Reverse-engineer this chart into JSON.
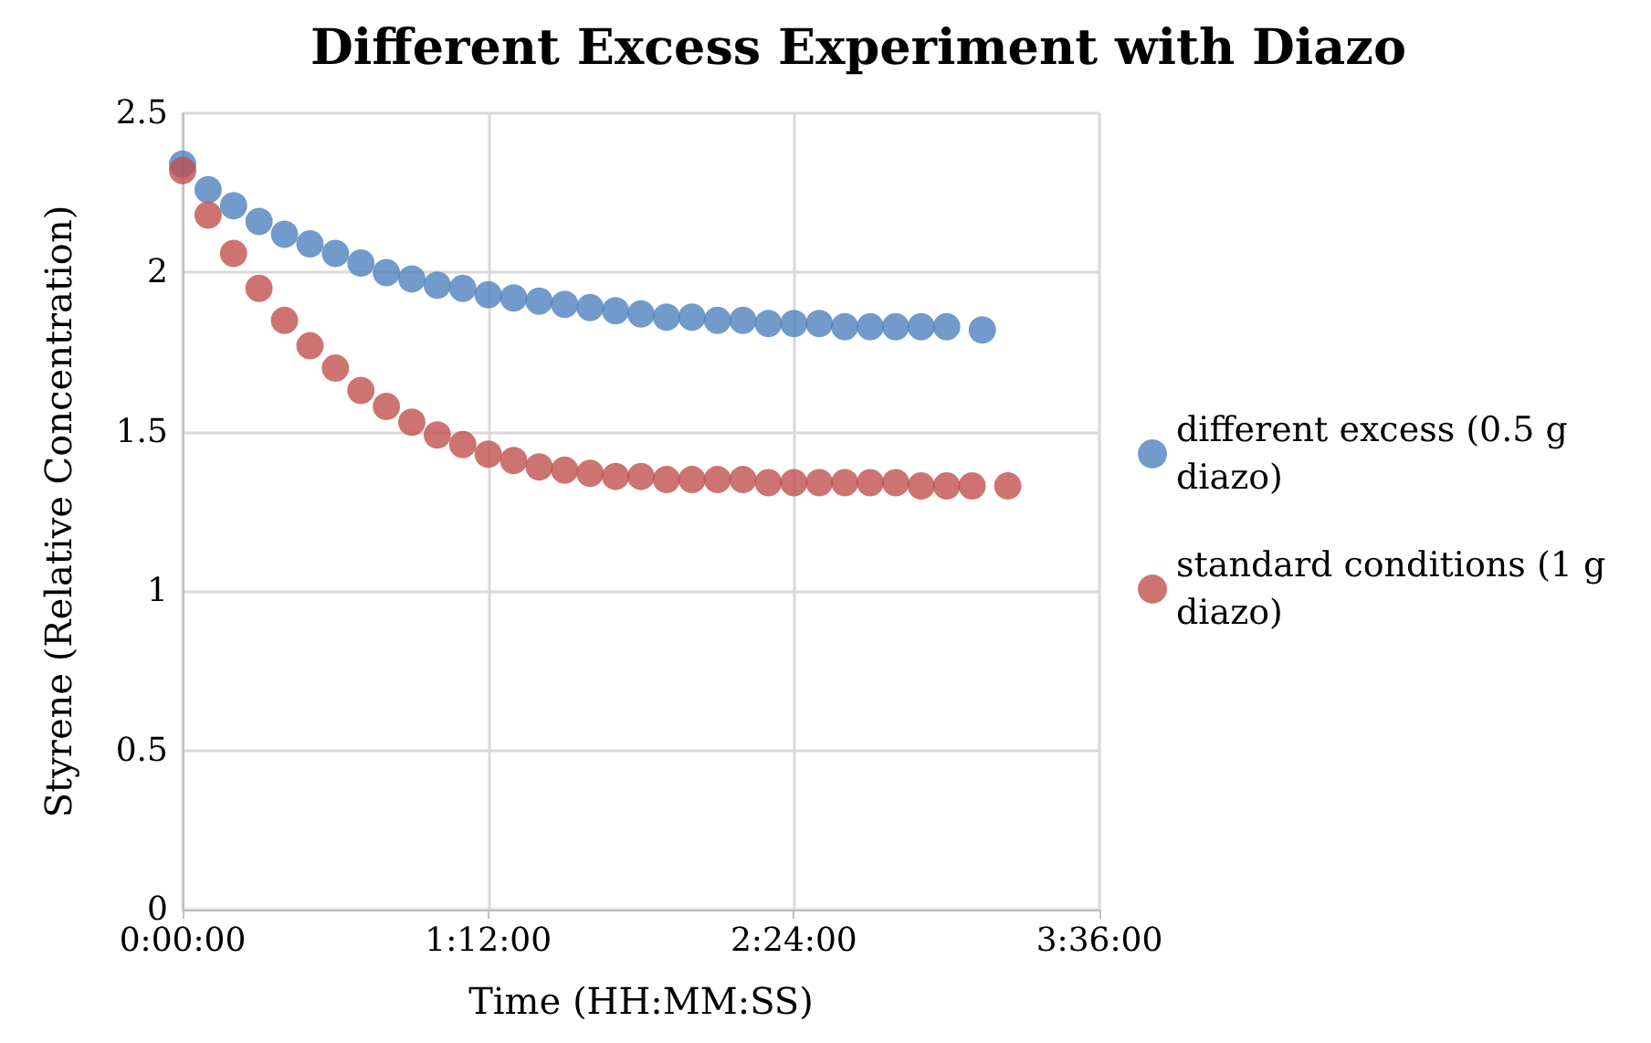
{
  "chart_data": {
    "type": "scatter",
    "title": "Different Excess Experiment with Diazo",
    "xlabel": "Time (HH:MM:SS)",
    "ylabel": "Styrene (Relative Concentration)",
    "xlim": [
      0,
      3.6
    ],
    "xticks": [
      {
        "value": 0,
        "label": "0:00:00"
      },
      {
        "value": 1.2,
        "label": "1:12:00"
      },
      {
        "value": 2.4,
        "label": "2:24:00"
      },
      {
        "value": 3.6,
        "label": "3:36:00"
      }
    ],
    "ylim": [
      0,
      2.5
    ],
    "yticks": [
      0,
      0.5,
      1,
      1.5,
      2,
      2.5
    ],
    "grid": true,
    "legend": "right",
    "marker": "circle",
    "series": [
      {
        "name": "different excess (0.5 g diazo)",
        "color": "#4f81bd",
        "x": [
          0,
          0.1,
          0.2,
          0.3,
          0.4,
          0.5,
          0.6,
          0.7,
          0.8,
          0.9,
          1.0,
          1.1,
          1.2,
          1.3,
          1.4,
          1.5,
          1.6,
          1.7,
          1.8,
          1.9,
          2.0,
          2.1,
          2.2,
          2.3,
          2.4,
          2.5,
          2.6,
          2.7,
          2.8,
          2.9,
          3.0,
          3.14
        ],
        "values": [
          2.34,
          2.26,
          2.21,
          2.16,
          2.12,
          2.09,
          2.06,
          2.03,
          2.0,
          1.98,
          1.96,
          1.95,
          1.93,
          1.92,
          1.91,
          1.9,
          1.89,
          1.88,
          1.87,
          1.86,
          1.86,
          1.85,
          1.85,
          1.84,
          1.84,
          1.84,
          1.83,
          1.83,
          1.83,
          1.83,
          1.83,
          1.82
        ]
      },
      {
        "name": "standard conditions (1 g diazo)",
        "color": "#c0504d",
        "x": [
          0,
          0.1,
          0.2,
          0.3,
          0.4,
          0.5,
          0.6,
          0.7,
          0.8,
          0.9,
          1.0,
          1.1,
          1.2,
          1.3,
          1.4,
          1.5,
          1.6,
          1.7,
          1.8,
          1.9,
          2.0,
          2.1,
          2.2,
          2.3,
          2.4,
          2.5,
          2.6,
          2.7,
          2.8,
          2.9,
          3.0,
          3.1,
          3.24
        ],
        "values": [
          2.32,
          2.18,
          2.06,
          1.95,
          1.85,
          1.77,
          1.7,
          1.63,
          1.58,
          1.53,
          1.49,
          1.46,
          1.43,
          1.41,
          1.39,
          1.38,
          1.37,
          1.36,
          1.36,
          1.35,
          1.35,
          1.35,
          1.35,
          1.34,
          1.34,
          1.34,
          1.34,
          1.34,
          1.34,
          1.33,
          1.33,
          1.33,
          1.33
        ]
      }
    ]
  }
}
